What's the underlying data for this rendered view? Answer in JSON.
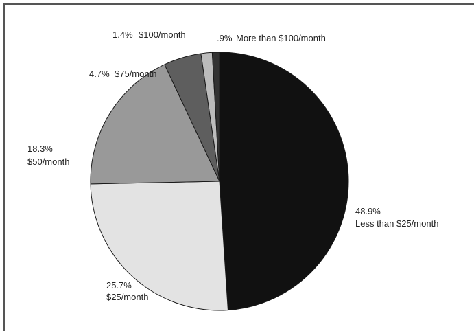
{
  "chart_data": {
    "type": "pie",
    "title": "",
    "slices": [
      {
        "pct_label": "48.9%",
        "label": "Less than $25/month",
        "value": 48.9,
        "color": "#111111"
      },
      {
        "pct_label": "25.7%",
        "label": "$25/month",
        "value": 25.7,
        "color": "#e3e3e3"
      },
      {
        "pct_label": "18.3%",
        "label": "$50/month",
        "value": 18.3,
        "color": "#999999"
      },
      {
        "pct_label": "4.7%",
        "label": "$75/month",
        "value": 4.7,
        "color": "#5e5e5e"
      },
      {
        "pct_label": "1.4%",
        "label": "$100/month",
        "value": 1.4,
        "color": "#bcbcbc"
      },
      {
        "pct_label": ".9%",
        "label": "More than $100/month",
        "value": 0.9,
        "color": "#333333"
      }
    ]
  }
}
